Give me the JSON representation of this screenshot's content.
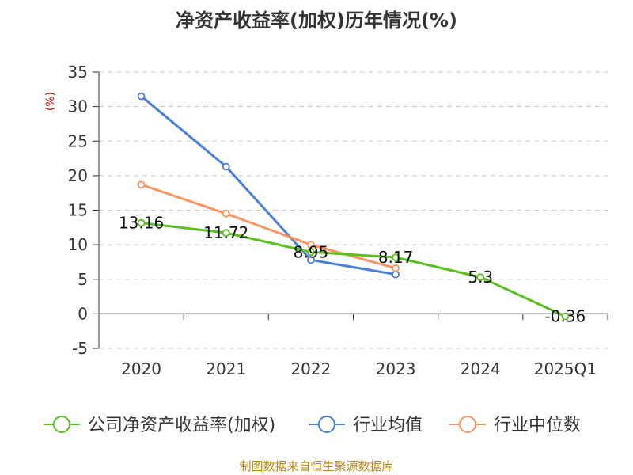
{
  "chart_data": {
    "type": "line",
    "title": "净资产收益率(加权)历年情况(%)",
    "ylabel": "(%)",
    "xlabel": "",
    "categories": [
      "2020",
      "2021",
      "2022",
      "2023",
      "2024",
      "2025Q1"
    ],
    "ylim": [
      -5,
      35
    ],
    "yticks": [
      35,
      30,
      25,
      20,
      15,
      10,
      5,
      0,
      -5
    ],
    "grid": true,
    "legend_position": "bottom",
    "series": [
      {
        "name": "公司净资产收益率(加权)",
        "color": "#5bbf21",
        "values": [
          13.16,
          11.72,
          8.95,
          8.17,
          5.3,
          -0.36
        ],
        "labels": [
          "13.16",
          "11.72",
          "8.95",
          "8.17",
          "5.3",
          "-0.36"
        ]
      },
      {
        "name": "行业均值",
        "color": "#4a7fd8",
        "values": [
          31.5,
          21.3,
          7.8,
          5.7,
          null,
          null
        ]
      },
      {
        "name": "行业中位数",
        "color": "#f59562",
        "values": [
          18.7,
          14.5,
          10.0,
          6.6,
          null,
          null
        ]
      }
    ],
    "source": "制图数据来自恒生聚源数据库"
  }
}
